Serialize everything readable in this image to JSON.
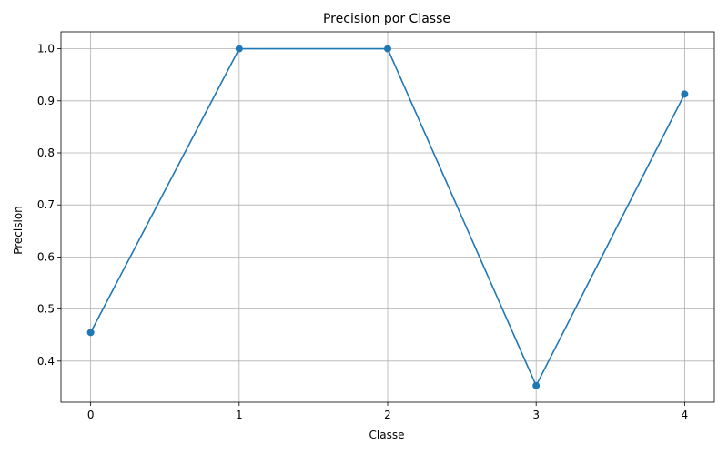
{
  "chart_data": {
    "type": "line",
    "title": "Precision por Classe",
    "xlabel": "Classe",
    "ylabel": "Precision",
    "x": [
      0,
      1,
      2,
      3,
      4
    ],
    "series": [
      {
        "values": [
          0.455,
          1.0,
          1.0,
          0.353,
          0.913
        ],
        "color": "#1f77b4",
        "marker": "circle"
      }
    ],
    "xticks": [
      "0",
      "1",
      "2",
      "3",
      "4"
    ],
    "yticks": [
      "0.4",
      "0.5",
      "0.6",
      "0.7",
      "0.8",
      "0.9",
      "1.0"
    ],
    "xlim": [
      -0.2,
      4.2
    ],
    "ylim": [
      0.321,
      1.0325
    ],
    "grid": true
  }
}
